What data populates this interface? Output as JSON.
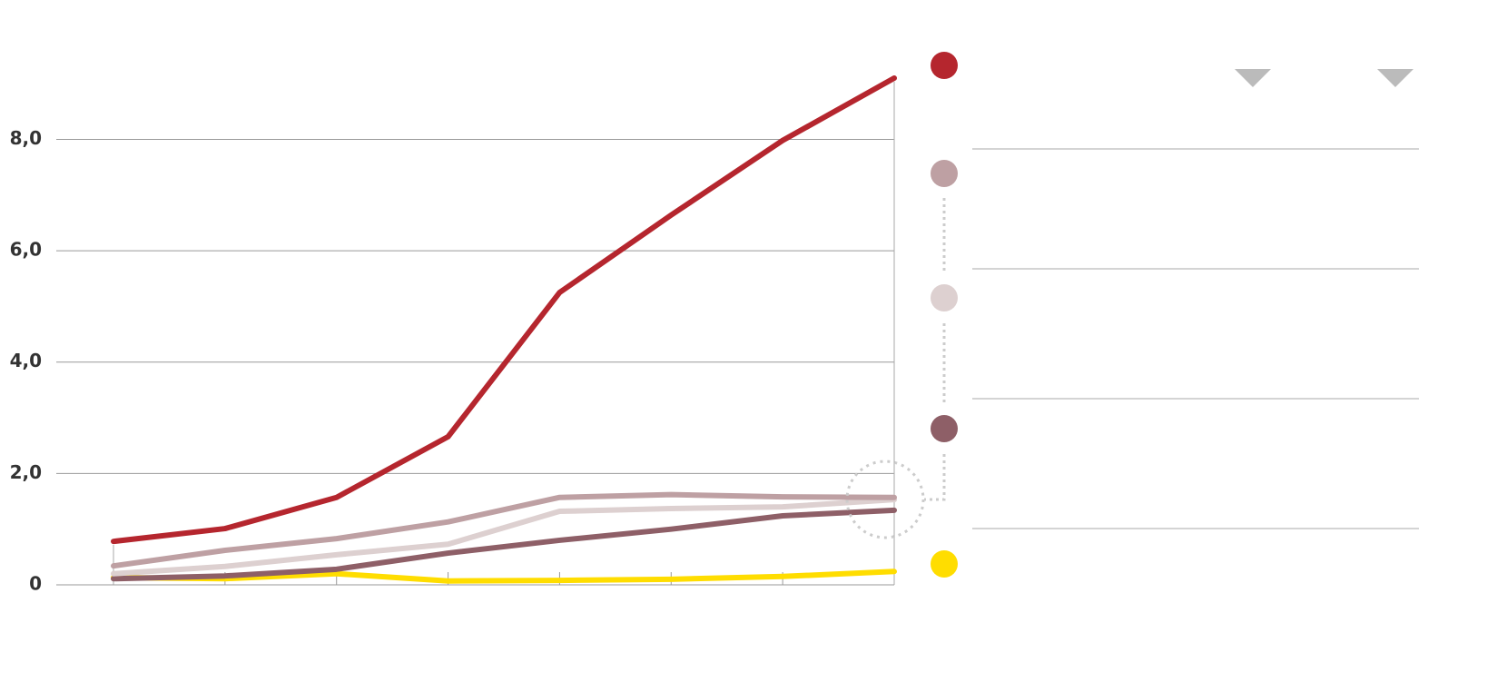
{
  "chart_data": {
    "type": "line",
    "categories": [
      null,
      null,
      null,
      null,
      null,
      null,
      null,
      null
    ],
    "ylim": [
      0,
      9.1
    ],
    "yticks": [
      0,
      {
        "value": 2,
        "label": "2,0"
      },
      {
        "value": 4,
        "label": "4,0"
      },
      {
        "value": 6,
        "label": "6,0"
      },
      {
        "value": 8,
        "label": "8,0"
      }
    ],
    "grid": true,
    "series": [
      {
        "color": "#b5262e",
        "values": [
          0.78,
          1.01,
          1.57,
          2.66,
          5.25,
          6.64,
          7.98,
          9.1
        ]
      },
      {
        "color": "#bea0a3",
        "values": [
          0.34,
          0.62,
          0.83,
          1.13,
          1.57,
          1.62,
          1.58,
          1.57
        ]
      },
      {
        "color": "#ddd0d0",
        "values": [
          0.2,
          0.33,
          0.54,
          0.73,
          1.32,
          1.37,
          1.4,
          1.53
        ]
      },
      {
        "color": "#8e5f67",
        "values": [
          0.11,
          0.16,
          0.28,
          0.57,
          0.8,
          1.0,
          1.24,
          1.34
        ]
      },
      {
        "color": "#ffdd00",
        "values": [
          0.13,
          0.11,
          0.2,
          0.07,
          0.08,
          0.1,
          0.15,
          0.24
        ]
      }
    ]
  }
}
